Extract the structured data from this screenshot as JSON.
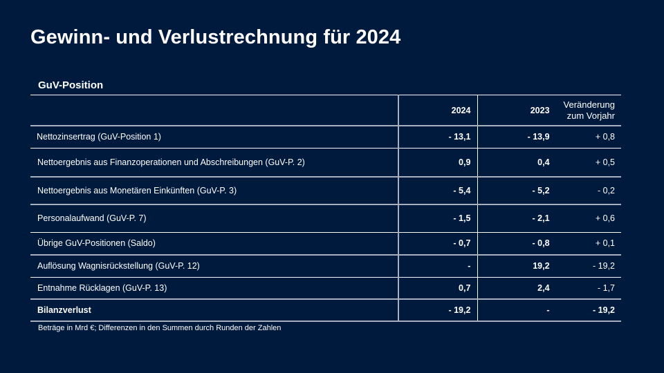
{
  "title": "Gewinn- und Verlustrechnung für 2024",
  "table": {
    "label": "GuV-Position",
    "headers": [
      "",
      "2024",
      "2023",
      "Veränderung zum Vorjahr"
    ],
    "header_change_line1": "Veränderung",
    "header_change_line2": "zum Vorjahr",
    "rows": [
      {
        "label": "Nettozinsertrag  (GuV-Position 1)",
        "y2024": "- 13,1",
        "y2023": "- 13,9",
        "change": "+ 0,8"
      },
      {
        "label": "Nettoergebnis aus Finanzoperationen und Abschreibungen (GuV-P. 2)",
        "y2024": "0,9",
        "y2023": "0,4",
        "change": "+ 0,5"
      },
      {
        "label": "Nettoergebnis aus Monetären Einkünften (GuV-P. 3)",
        "y2024": "- 5,4",
        "y2023": "- 5,2",
        "change": "- 0,2"
      },
      {
        "label": "Personalaufwand  (GuV-P. 7)",
        "y2024": "- 1,5",
        "y2023": "- 2,1",
        "change": "+ 0,6"
      },
      {
        "label": "Übrige GuV-Positionen (Saldo)",
        "y2024": "- 0,7",
        "y2023": "- 0,8",
        "change": "+ 0,1"
      },
      {
        "label": "Auflösung Wagnisrückstellung (GuV-P. 12)",
        "y2024": "-",
        "y2023": "19,2",
        "change": "- 19,2"
      },
      {
        "label": "Entnahme Rücklagen (GuV-P. 13)",
        "y2024": "0,7",
        "y2023": "2,4",
        "change": "- 1,7"
      },
      {
        "label": "Bilanzverlust",
        "y2024": "- 19,2",
        "y2023": "-",
        "change": "- 19,2"
      }
    ]
  },
  "footnote": "Beträge in Mrd €; Differenzen in den Summen durch Runden der Zahlen"
}
